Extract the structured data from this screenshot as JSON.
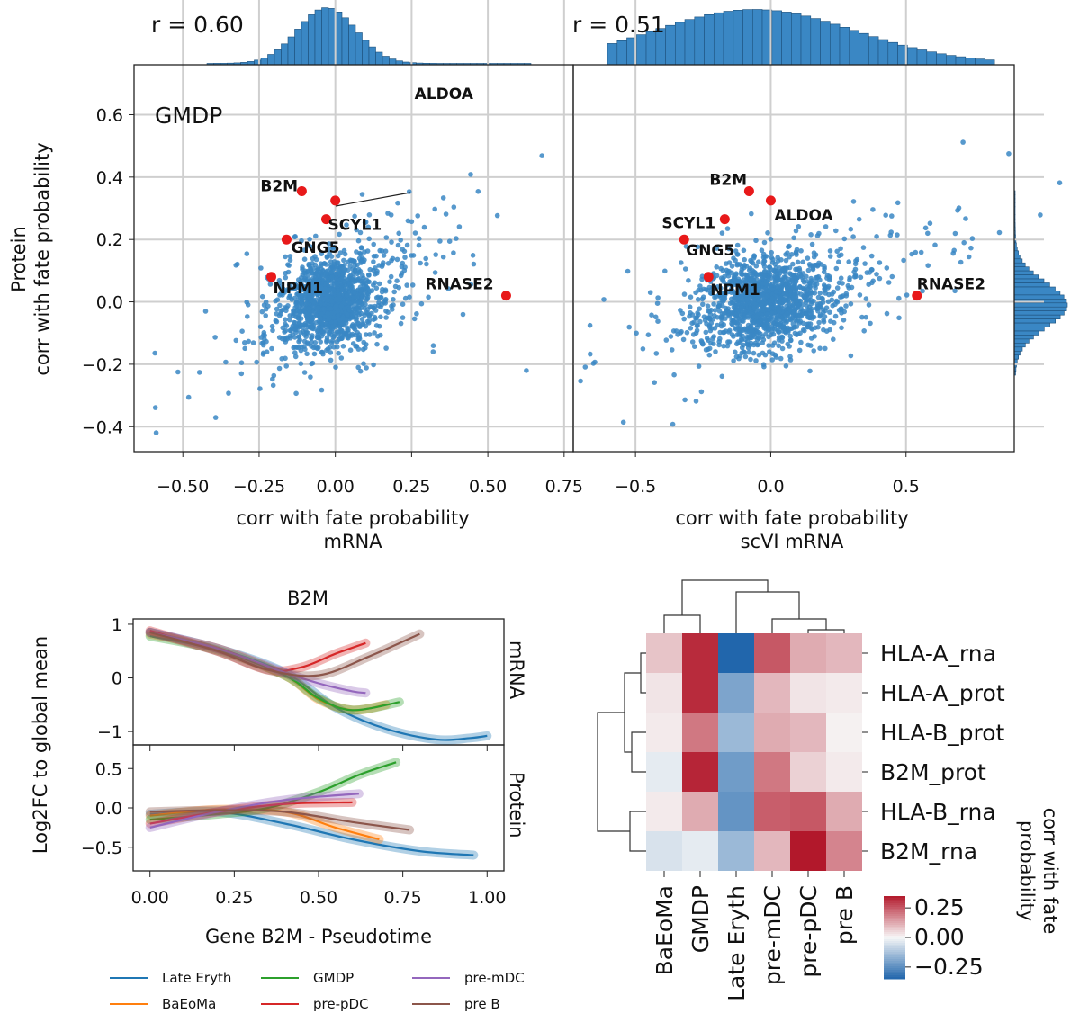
{
  "chart_data": [
    {
      "type": "scatter",
      "panel": "top-left",
      "annotation": "r = 0.60",
      "cell_label": "GMDP",
      "xlabel_line1": "corr with fate probability",
      "xlabel_line2": "mRNA",
      "ylabel_line1": "Protein",
      "ylabel_line2": "corr with fate probability",
      "xlim": [
        -0.66,
        0.78
      ],
      "ylim": [
        -0.48,
        0.76
      ],
      "x_ticks": [
        -0.5,
        -0.25,
        0.0,
        0.25,
        0.5,
        0.75
      ],
      "x_tick_labels": [
        "−0.50",
        "−0.25",
        "0.00",
        "0.25",
        "0.50",
        "0.75"
      ],
      "y_ticks": [
        -0.4,
        -0.2,
        0.0,
        0.2,
        0.4,
        0.6
      ],
      "y_tick_labels": [
        "−0.4",
        "−0.2",
        "0.0",
        "0.2",
        "0.4",
        "0.6"
      ],
      "n_background_points": 1500,
      "highlighted": [
        {
          "gene": "B2M",
          "x": -0.11,
          "y": 0.355
        },
        {
          "gene": "ALDOA",
          "x": 0.0,
          "y": 0.325
        },
        {
          "gene": "SCYL1",
          "x": -0.03,
          "y": 0.265
        },
        {
          "gene": "GNG5",
          "x": -0.16,
          "y": 0.2
        },
        {
          "gene": "NPM1",
          "x": -0.21,
          "y": 0.08
        },
        {
          "gene": "RNASE2",
          "x": 0.56,
          "y": 0.02
        }
      ]
    },
    {
      "type": "scatter",
      "panel": "top-right",
      "annotation": "r = 0.51",
      "xlabel_line1": "corr with fate probability",
      "xlabel_line2": "scVI mRNA",
      "xlim": [
        -0.73,
        0.9
      ],
      "ylim": [
        -0.48,
        0.76
      ],
      "x_ticks": [
        -0.5,
        0.0,
        0.5
      ],
      "x_tick_labels": [
        "−0.5",
        "0.0",
        "0.5"
      ],
      "y_ticks": [
        -0.4,
        -0.2,
        0.0,
        0.2,
        0.4,
        0.6
      ],
      "n_background_points": 1500,
      "highlighted": [
        {
          "gene": "B2M",
          "x": -0.08,
          "y": 0.355
        },
        {
          "gene": "ALDOA",
          "x": 0.0,
          "y": 0.325
        },
        {
          "gene": "SCYL1",
          "x": -0.17,
          "y": 0.265
        },
        {
          "gene": "GNG5",
          "x": -0.32,
          "y": 0.2
        },
        {
          "gene": "NPM1",
          "x": -0.23,
          "y": 0.08
        },
        {
          "gene": "RNASE2",
          "x": 0.54,
          "y": 0.02
        }
      ]
    },
    {
      "type": "line",
      "panel": "bottom-left",
      "title": "B2M",
      "xlabel": "Gene B2M - Pseudotime",
      "ylabel": "Log2FC to global mean",
      "xlim": [
        -0.05,
        1.05
      ],
      "x_ticks": [
        0.0,
        0.25,
        0.5,
        0.75,
        1.0
      ],
      "x_tick_labels": [
        "0.00",
        "0.25",
        "0.50",
        "0.75",
        "1.00"
      ],
      "mRNA": {
        "label": "mRNA",
        "ylim": [
          -1.25,
          1.1
        ],
        "y_ticks": [
          -1,
          0,
          1
        ],
        "y_tick_labels": [
          "−1",
          "0",
          "1"
        ],
        "series": [
          {
            "name": "Late Eryth",
            "color": "#1f77b4",
            "x": [
              0,
              0.2,
              0.4,
              0.55,
              0.7,
              0.85,
              0.95,
              1.0
            ],
            "y": [
              0.85,
              0.55,
              0.1,
              -0.55,
              -0.95,
              -1.15,
              -1.12,
              -1.08
            ]
          },
          {
            "name": "BaEoMa",
            "color": "#ff7f0e",
            "x": [
              0,
              0.2,
              0.4,
              0.5,
              0.6,
              0.7
            ],
            "y": [
              0.82,
              0.55,
              0.05,
              -0.4,
              -0.6,
              -0.5
            ]
          },
          {
            "name": "GMDP",
            "color": "#2ca02c",
            "x": [
              0,
              0.2,
              0.4,
              0.5,
              0.6,
              0.74
            ],
            "y": [
              0.78,
              0.52,
              0.05,
              -0.38,
              -0.6,
              -0.45
            ]
          },
          {
            "name": "pre-pDC",
            "color": "#d62728",
            "x": [
              0,
              0.2,
              0.35,
              0.45,
              0.55,
              0.64
            ],
            "y": [
              0.88,
              0.5,
              0.15,
              0.2,
              0.45,
              0.65
            ]
          },
          {
            "name": "pre-mDC",
            "color": "#9467bd",
            "x": [
              0,
              0.2,
              0.4,
              0.5,
              0.6,
              0.64
            ],
            "y": [
              0.85,
              0.55,
              0.1,
              -0.1,
              -0.25,
              -0.28
            ]
          },
          {
            "name": "pre B",
            "color": "#8c564b",
            "x": [
              0,
              0.2,
              0.35,
              0.5,
              0.65,
              0.8
            ],
            "y": [
              0.85,
              0.5,
              0.15,
              0.05,
              0.4,
              0.82
            ]
          }
        ]
      },
      "Protein": {
        "label": "Protein",
        "ylim": [
          -0.8,
          0.8
        ],
        "y_ticks": [
          -0.5,
          0.0,
          0.5
        ],
        "y_tick_labels": [
          "−0.5",
          "0.0",
          "0.5"
        ],
        "series": [
          {
            "name": "Late Eryth",
            "color": "#1f77b4",
            "x": [
              0,
              0.2,
              0.4,
              0.6,
              0.8,
              0.96
            ],
            "y": [
              -0.08,
              -0.05,
              -0.2,
              -0.4,
              -0.55,
              -0.6
            ]
          },
          {
            "name": "BaEoMa",
            "color": "#ff7f0e",
            "x": [
              0,
              0.2,
              0.4,
              0.55,
              0.68
            ],
            "y": [
              -0.1,
              -0.02,
              -0.05,
              -0.25,
              -0.4
            ]
          },
          {
            "name": "GMDP",
            "color": "#2ca02c",
            "x": [
              0,
              0.2,
              0.35,
              0.5,
              0.62,
              0.73
            ],
            "y": [
              -0.15,
              -0.08,
              0.0,
              0.2,
              0.42,
              0.58
            ]
          },
          {
            "name": "pre-pDC",
            "color": "#d62728",
            "x": [
              0,
              0.2,
              0.4,
              0.6
            ],
            "y": [
              -0.2,
              -0.05,
              0.05,
              0.07
            ]
          },
          {
            "name": "pre-mDC",
            "color": "#9467bd",
            "x": [
              0,
              0.2,
              0.4,
              0.62
            ],
            "y": [
              -0.25,
              -0.05,
              0.1,
              0.18
            ]
          },
          {
            "name": "pre B",
            "color": "#8c564b",
            "x": [
              0,
              0.2,
              0.4,
              0.6,
              0.77
            ],
            "y": [
              -0.05,
              -0.03,
              -0.05,
              -0.18,
              -0.28
            ]
          }
        ]
      },
      "legend": [
        "Late Eryth",
        "GMDP",
        "pre-mDC",
        "BaEoMa",
        "pre-pDC",
        "pre B"
      ]
    },
    {
      "type": "heatmap",
      "panel": "bottom-right",
      "columns": [
        "BaEoMa",
        "GMDP",
        "Late Eryth",
        "pre-mDC",
        "pre-pDC",
        "pre B"
      ],
      "rows": [
        "HLA-A_rna",
        "HLA-A_prot",
        "HLA-B_prot",
        "B2M_prot",
        "HLA-B_rna",
        "B2M_rna"
      ],
      "values": [
        [
          0.08,
          0.32,
          -0.35,
          0.25,
          0.12,
          0.1
        ],
        [
          0.03,
          0.32,
          -0.2,
          0.1,
          0.03,
          0.02
        ],
        [
          0.02,
          0.2,
          -0.15,
          0.12,
          0.1,
          0.01
        ],
        [
          -0.03,
          0.33,
          -0.22,
          0.2,
          0.06,
          0.02
        ],
        [
          0.02,
          0.12,
          -0.24,
          0.24,
          0.25,
          0.12
        ],
        [
          -0.05,
          -0.03,
          -0.15,
          0.1,
          0.35,
          0.18
        ]
      ],
      "vmin": -0.35,
      "vmax": 0.35,
      "colorbar_ticks": [
        0.25,
        0.0,
        -0.25
      ],
      "colorbar_tick_labels": [
        "0.25",
        "0.00",
        "−0.25"
      ],
      "colorbar_label_line1": "corr with fate",
      "colorbar_label_line2": "probability"
    }
  ]
}
